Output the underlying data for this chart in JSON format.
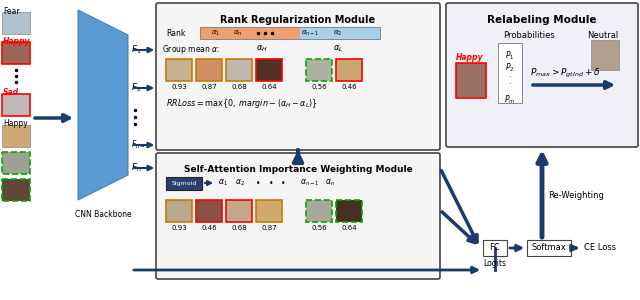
{
  "bg_color": "#ffffff",
  "arrow_color": "#1a3a6b",
  "rank_module_title": "Rank Regularization Module",
  "saim_module_title": "Self-Attention Importance Weighting Module",
  "relabel_title": "Relabeling Module",
  "rank_bar_orange": "#f0a070",
  "rank_bar_blue": "#a8d0e8",
  "cnn_color": "#5b9bd5",
  "sigmoid_color": "#2a3f6f",
  "rank_values": [
    0.93,
    0.87,
    0.68,
    0.64,
    0.56,
    0.46
  ],
  "saim_values": [
    0.93,
    0.46,
    0.68,
    0.87,
    0.56,
    0.64
  ],
  "fc_label": "FC",
  "softmax_label": "Softmax",
  "celoss_label": "CE Loss",
  "logits_label": "Logits",
  "reweight_label": "Re-Weighting",
  "neutral_label": "Neutral",
  "probabilities_label": "Probabilities",
  "left_face_colors": [
    "#b0c0d0",
    "#9a6858",
    "#c8c0b8",
    "#d0a878",
    "#a0a090",
    "#604838"
  ],
  "left_border_colors": [
    "none",
    "red",
    "red",
    "none",
    "green_dash",
    "green_dash"
  ],
  "rrm_face_colors": [
    "#c8b090",
    "#d09060",
    "#c0b8b0",
    "#503028",
    "#b0b0a0",
    "#c8a870"
  ],
  "rrm_border_colors": [
    "orange",
    "orange",
    "orange",
    "red",
    "green_dash",
    "red"
  ],
  "saim_face_colors": [
    "#b8a890",
    "#8a5040",
    "#c0a888",
    "#d0a870",
    "#a8a898",
    "#483020"
  ],
  "saim_border_colors": [
    "orange",
    "red",
    "red",
    "orange",
    "green_dash",
    "green_dash"
  ]
}
